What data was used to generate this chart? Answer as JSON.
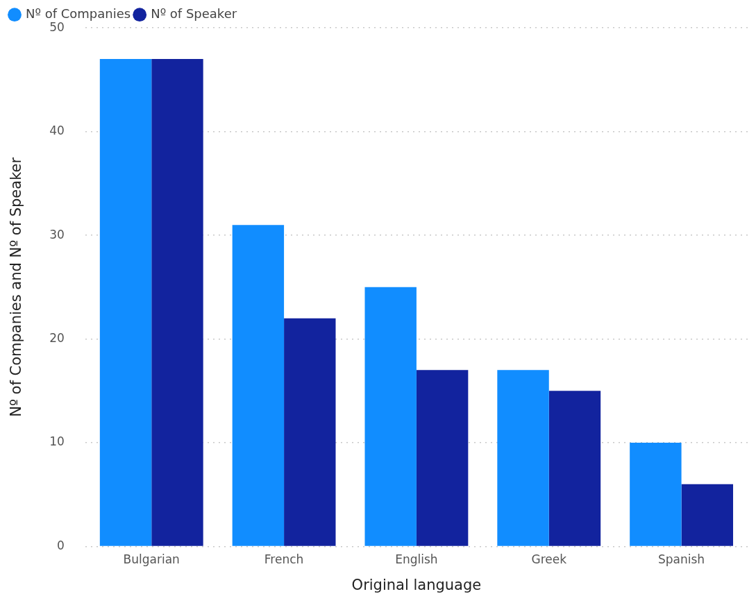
{
  "chart_data": {
    "type": "bar",
    "xlabel": "Original language",
    "ylabel": "Nº of Companies and Nº of Speaker",
    "categories": [
      "Bulgarian",
      "French",
      "English",
      "Greek",
      "Spanish"
    ],
    "series": [
      {
        "name": "Nº of Companies",
        "color": "#118dff",
        "values": [
          47,
          31,
          25,
          17,
          10
        ]
      },
      {
        "name": "Nº of Speaker",
        "color": "#12239e",
        "values": [
          47,
          22,
          17,
          15,
          6
        ]
      }
    ],
    "ylim": [
      0,
      50
    ],
    "yticks": [
      0,
      10,
      20,
      30,
      40,
      50
    ],
    "grid": "y",
    "legend": "top left"
  }
}
